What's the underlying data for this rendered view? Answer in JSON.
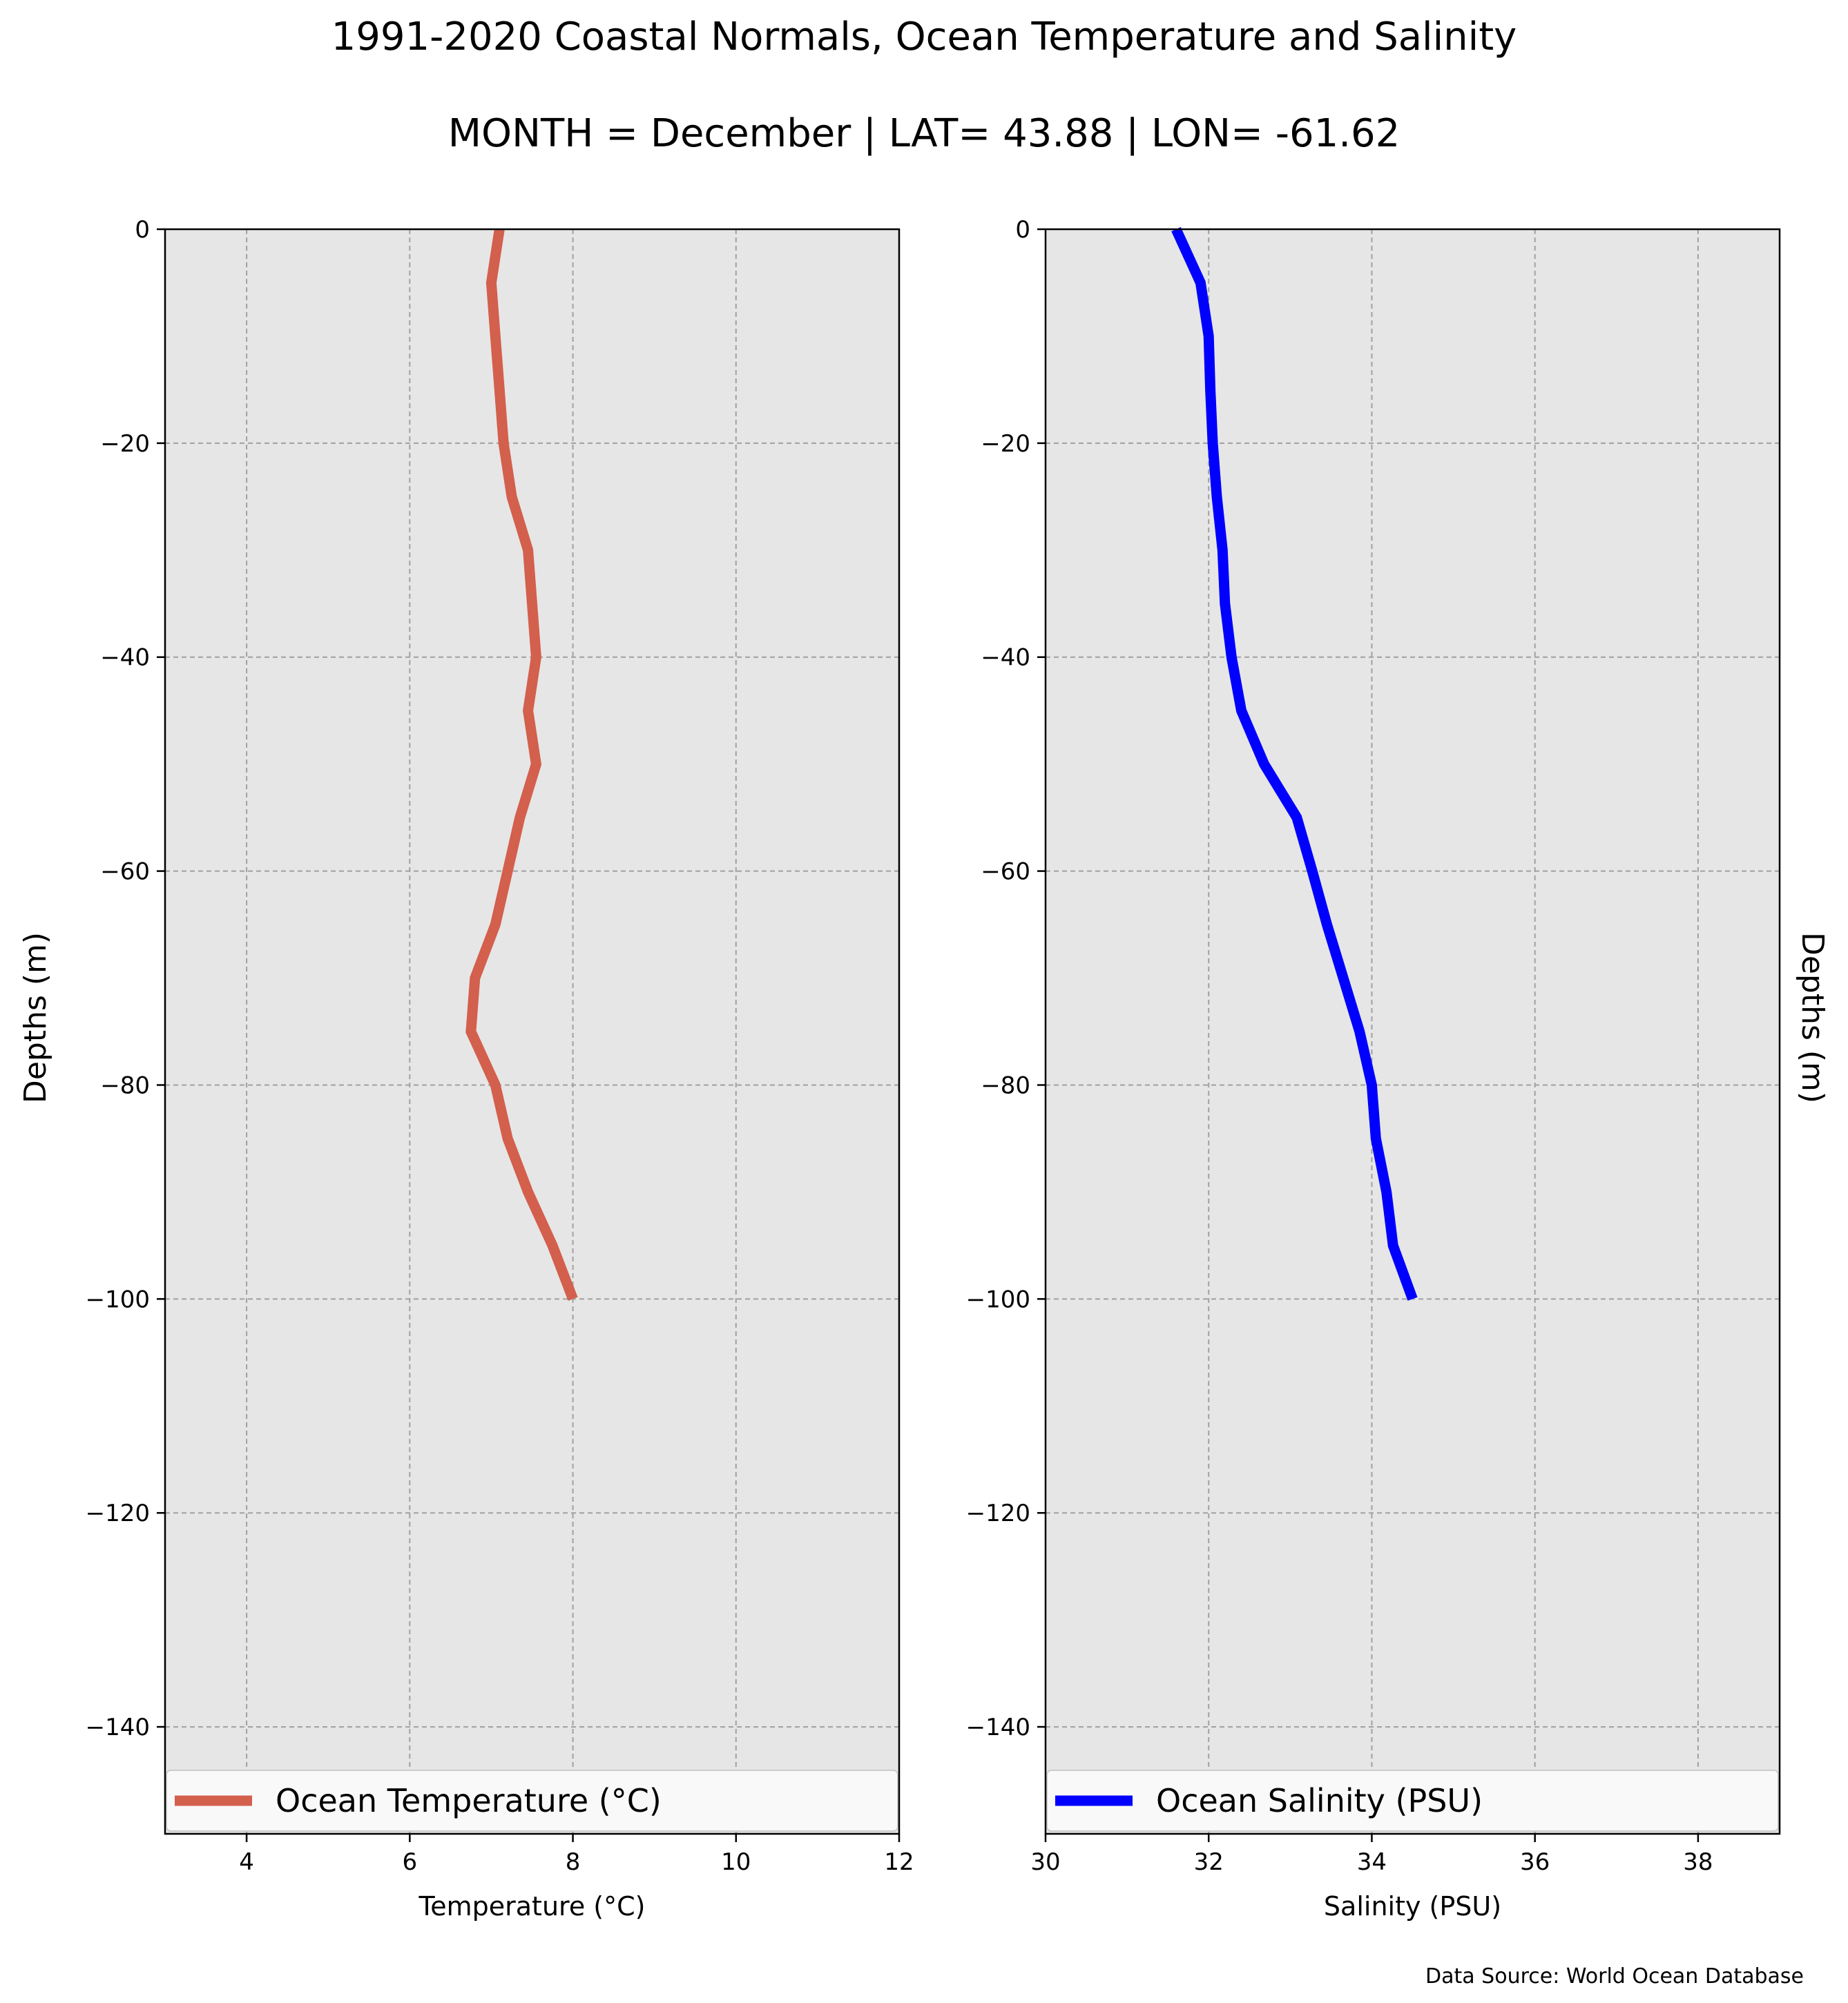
{
  "titles": {
    "line1": "1991-2020 Coastal Normals, Ocean Temperature and Salinity",
    "line2": "MONTH = December | LAT= 43.88 | LON= -61.62"
  },
  "footer": {
    "source": "Data Source: World Ocean Database"
  },
  "colors": {
    "plot_bg": "#e6e6e6",
    "grid": "#a0a0a0",
    "temperature_line": "#d35f4d",
    "salinity_line": "#0000ff"
  },
  "chart_data": [
    {
      "type": "line",
      "title": "",
      "xlabel": "Temperature ($^\\circ$C)",
      "ylabel": "Depths (m)",
      "xlim": [
        3,
        12
      ],
      "ylim": [
        -150,
        0
      ],
      "xticks": [
        4,
        6,
        8,
        10,
        12
      ],
      "yticks": [
        0,
        -20,
        -40,
        -60,
        -80,
        -100,
        -120,
        -140
      ],
      "grid": true,
      "legend_position": "bottom",
      "series": [
        {
          "name": "Ocean Temperature ($^\\circ$C)",
          "color": "#d35f4d",
          "x": [
            7.1,
            7.0,
            7.05,
            7.1,
            7.15,
            7.25,
            7.45,
            7.5,
            7.55,
            7.45,
            7.55,
            7.35,
            7.2,
            7.05,
            6.8,
            6.75,
            7.05,
            7.2,
            7.45,
            7.75,
            8.0
          ],
          "y": [
            0,
            -5,
            -10,
            -15,
            -20,
            -25,
            -30,
            -35,
            -40,
            -45,
            -50,
            -55,
            -60,
            -65,
            -70,
            -75,
            -80,
            -85,
            -90,
            -95,
            -100
          ]
        }
      ],
      "labels": {
        "xlabel": "Temperature (°C)",
        "ylabel": "Depths (m)",
        "legend": "Ocean Temperature (°C)",
        "xtick_labels": [
          "4",
          "6",
          "8",
          "10",
          "12"
        ],
        "ytick_labels": [
          "0",
          "−20",
          "−40",
          "−60",
          "−80",
          "−100",
          "−120",
          "−140"
        ]
      }
    },
    {
      "type": "line",
      "title": "",
      "xlabel": "Salinity (PSU)",
      "ylabel": "Depths (m)",
      "xlim": [
        30,
        39
      ],
      "ylim": [
        -150,
        0
      ],
      "xticks": [
        30,
        32,
        34,
        36,
        38
      ],
      "yticks": [
        0,
        -20,
        -40,
        -60,
        -80,
        -100,
        -120,
        -140
      ],
      "grid": true,
      "legend_position": "bottom",
      "series": [
        {
          "name": "Ocean Salinity (PSU)",
          "color": "#0000ff",
          "x": [
            31.6,
            31.9,
            32.0,
            32.02,
            32.05,
            32.1,
            32.17,
            32.2,
            32.28,
            32.4,
            32.68,
            33.08,
            33.27,
            33.45,
            33.65,
            33.85,
            34.0,
            34.05,
            34.18,
            34.26,
            34.5
          ],
          "y": [
            0,
            -5,
            -10,
            -15,
            -20,
            -25,
            -30,
            -35,
            -40,
            -45,
            -50,
            -55,
            -60,
            -65,
            -70,
            -75,
            -80,
            -85,
            -90,
            -95,
            -100
          ]
        }
      ],
      "labels": {
        "xlabel": "Salinity (PSU)",
        "ylabel": "Depths (m)",
        "legend": "Ocean Salinity (PSU)",
        "xtick_labels": [
          "30",
          "32",
          "34",
          "36",
          "38"
        ],
        "ytick_labels": [
          "0",
          "−20",
          "−40",
          "−60",
          "−80",
          "−100",
          "−120",
          "−140"
        ]
      }
    }
  ]
}
